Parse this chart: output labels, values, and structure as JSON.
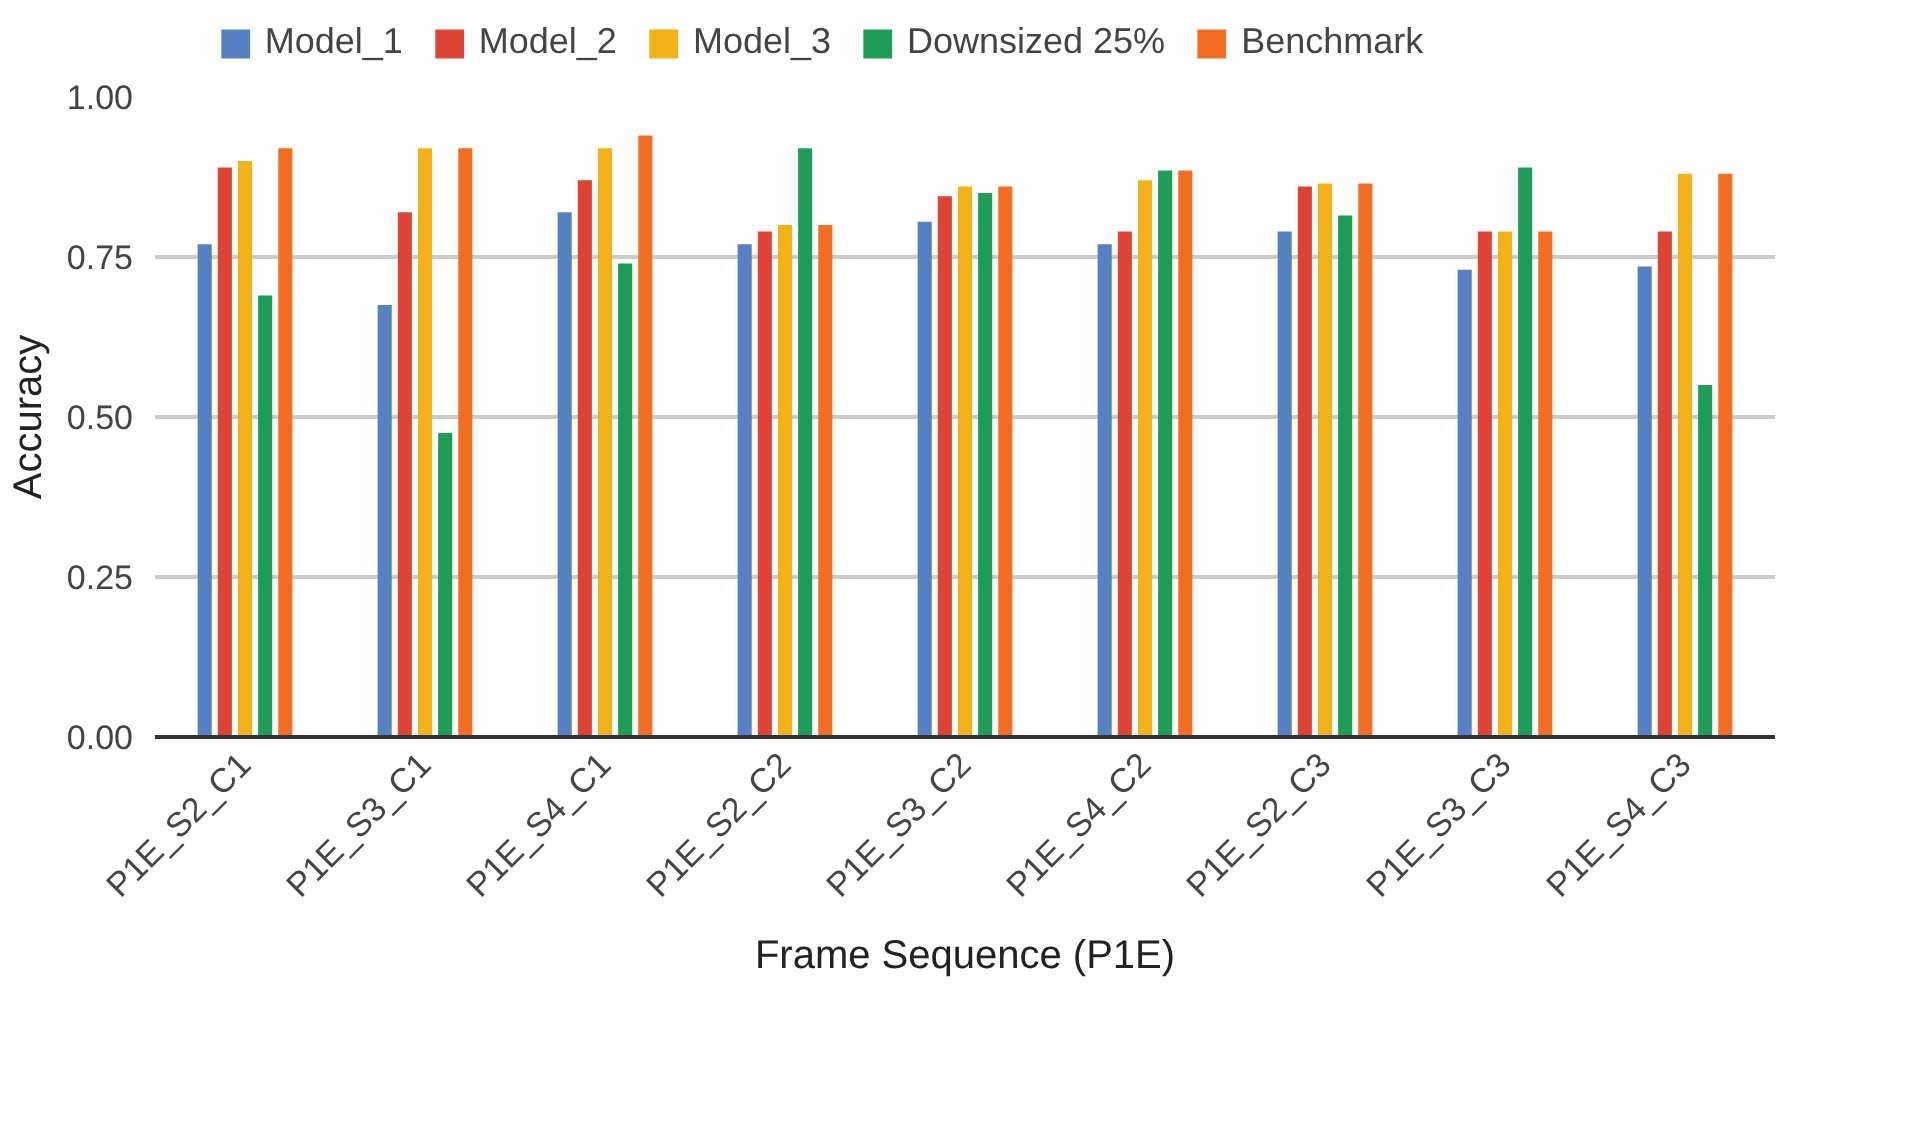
{
  "chart_data": {
    "type": "bar",
    "xlabel": "Frame Sequence (P1E)",
    "ylabel": "Accuracy",
    "categories": [
      "P1E_S2_C1",
      "P1E_S3_C1",
      "P1E_S4_C1",
      "P1E_S2_C2",
      "P1E_S3_C2",
      "P1E_S4_C2",
      "P1E_S2_C3",
      "P1E_S3_C3",
      "P1E_S4_C3"
    ],
    "series": [
      {
        "name": "Model_1",
        "color": "#5680c2",
        "values": [
          0.77,
          0.675,
          0.82,
          0.77,
          0.805,
          0.77,
          0.79,
          0.73,
          0.735
        ]
      },
      {
        "name": "Model_2",
        "color": "#dc4535",
        "values": [
          0.89,
          0.82,
          0.87,
          0.79,
          0.845,
          0.79,
          0.86,
          0.79,
          0.79
        ]
      },
      {
        "name": "Model_3",
        "color": "#f4b21a",
        "values": [
          0.9,
          0.92,
          0.92,
          0.8,
          0.86,
          0.87,
          0.865,
          0.79,
          0.88
        ]
      },
      {
        "name": "Downsized 25%",
        "color": "#1d9d58",
        "values": [
          0.69,
          0.475,
          0.74,
          0.92,
          0.85,
          0.885,
          0.815,
          0.89,
          0.55
        ]
      },
      {
        "name": "Benchmark",
        "color": "#f36e22",
        "values": [
          0.92,
          0.92,
          0.94,
          0.8,
          0.86,
          0.885,
          0.865,
          0.79,
          0.88
        ]
      }
    ],
    "ylim": [
      0,
      1.0
    ],
    "yticks": [
      {
        "value": 0,
        "label": "0.00"
      },
      {
        "value": 0.25,
        "label": "0.25"
      },
      {
        "value": 0.5,
        "label": "0.50"
      },
      {
        "value": 0.75,
        "label": "0.75"
      },
      {
        "value": 1.0,
        "label": "1.00"
      }
    ],
    "grid": "y",
    "legend": "top"
  }
}
